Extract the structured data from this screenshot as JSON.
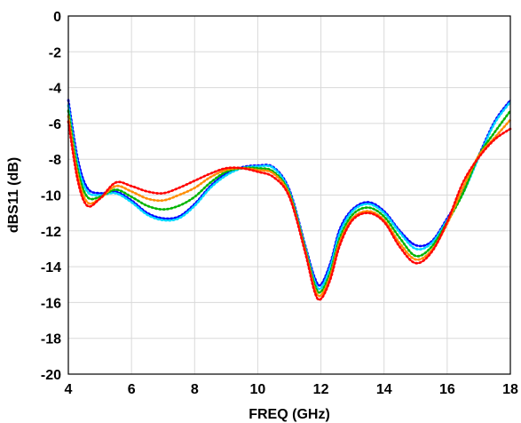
{
  "chart_data": {
    "type": "line",
    "title": "",
    "xlabel": "FREQ (GHz)",
    "ylabel": "dBS11 (dB)",
    "xlim": [
      4,
      18
    ],
    "ylim": [
      -20,
      0
    ],
    "xticks": [
      4,
      6,
      8,
      10,
      12,
      14,
      16,
      18
    ],
    "yticks": [
      0,
      -2,
      -4,
      -6,
      -8,
      -10,
      -12,
      -14,
      -16,
      -18,
      -20
    ],
    "grid": true,
    "legend": "none",
    "series": [
      {
        "color": "#0000ff",
        "x": [
          4.0,
          4.3,
          4.6,
          5.0,
          5.5,
          6.0,
          6.5,
          7.0,
          7.5,
          8.0,
          8.5,
          9.0,
          9.5,
          10.0,
          10.5,
          11.0,
          11.5,
          11.8,
          12.0,
          12.3,
          12.6,
          13.0,
          13.5,
          14.0,
          14.5,
          15.0,
          15.5,
          16.0,
          16.5,
          17.0,
          17.5,
          18.0
        ],
        "y": [
          -4.7,
          -8.0,
          -9.6,
          -9.9,
          -9.8,
          -10.3,
          -11.0,
          -11.3,
          -11.2,
          -10.5,
          -9.5,
          -8.8,
          -8.45,
          -8.35,
          -8.45,
          -9.7,
          -12.8,
          -14.6,
          -15.0,
          -13.8,
          -11.9,
          -10.8,
          -10.4,
          -10.9,
          -12.0,
          -12.8,
          -12.6,
          -11.3,
          -9.8,
          -7.8,
          -5.9,
          -4.7
        ]
      },
      {
        "color": "#00d8ff",
        "x": [
          4.0,
          4.3,
          4.6,
          5.0,
          5.5,
          6.0,
          6.5,
          7.0,
          7.5,
          8.0,
          8.5,
          9.0,
          9.5,
          10.0,
          10.5,
          11.0,
          11.5,
          11.8,
          12.0,
          12.3,
          12.6,
          13.0,
          13.5,
          14.0,
          14.5,
          15.0,
          15.5,
          16.0,
          16.5,
          17.0,
          17.5,
          18.0
        ],
        "y": [
          -5.0,
          -8.3,
          -9.8,
          -10.0,
          -9.9,
          -10.4,
          -11.1,
          -11.4,
          -11.3,
          -10.6,
          -9.6,
          -8.9,
          -8.5,
          -8.4,
          -8.5,
          -9.8,
          -12.9,
          -14.8,
          -15.2,
          -14.0,
          -12.1,
          -10.9,
          -10.5,
          -11.0,
          -12.1,
          -13.0,
          -12.7,
          -11.4,
          -9.9,
          -7.9,
          -6.0,
          -4.8
        ]
      },
      {
        "color": "#00b400",
        "x": [
          4.0,
          4.3,
          4.6,
          5.0,
          5.5,
          6.0,
          6.5,
          7.0,
          7.5,
          8.0,
          8.5,
          9.0,
          9.5,
          10.0,
          10.5,
          11.0,
          11.5,
          11.8,
          12.0,
          12.3,
          12.6,
          13.0,
          13.5,
          14.0,
          14.5,
          15.0,
          15.5,
          16.0,
          16.5,
          17.0,
          17.5,
          18.0
        ],
        "y": [
          -5.3,
          -8.6,
          -10.1,
          -10.1,
          -9.7,
          -10.1,
          -10.6,
          -10.8,
          -10.6,
          -10.1,
          -9.3,
          -8.7,
          -8.5,
          -8.5,
          -8.7,
          -9.9,
          -13.0,
          -15.0,
          -15.4,
          -14.3,
          -12.4,
          -11.1,
          -10.7,
          -11.2,
          -12.4,
          -13.4,
          -12.9,
          -11.5,
          -9.9,
          -7.8,
          -6.5,
          -5.3
        ]
      },
      {
        "color": "#ff8c00",
        "x": [
          4.0,
          4.3,
          4.6,
          5.0,
          5.5,
          6.0,
          6.5,
          7.0,
          7.5,
          8.0,
          8.5,
          9.0,
          9.5,
          10.0,
          10.5,
          11.0,
          11.5,
          11.8,
          12.0,
          12.3,
          12.6,
          13.0,
          13.5,
          14.0,
          14.5,
          15.0,
          15.5,
          16.0,
          16.5,
          17.0,
          17.5,
          18.0
        ],
        "y": [
          -5.6,
          -8.9,
          -10.4,
          -10.2,
          -9.5,
          -9.8,
          -10.2,
          -10.3,
          -10.0,
          -9.6,
          -9.0,
          -8.6,
          -8.5,
          -8.6,
          -8.8,
          -10.0,
          -13.1,
          -15.2,
          -15.6,
          -14.5,
          -12.6,
          -11.3,
          -10.9,
          -11.4,
          -12.7,
          -13.6,
          -13.1,
          -11.6,
          -9.6,
          -7.8,
          -6.8,
          -5.8
        ]
      },
      {
        "color": "#ff0000",
        "x": [
          4.0,
          4.3,
          4.6,
          5.0,
          5.5,
          6.0,
          6.5,
          7.0,
          7.5,
          8.0,
          8.5,
          9.0,
          9.5,
          10.0,
          10.5,
          11.0,
          11.5,
          11.8,
          12.0,
          12.3,
          12.6,
          13.0,
          13.5,
          14.0,
          14.5,
          15.0,
          15.5,
          16.0,
          16.5,
          17.0,
          17.5,
          18.0
        ],
        "y": [
          -5.9,
          -9.2,
          -10.6,
          -10.2,
          -9.3,
          -9.5,
          -9.8,
          -9.9,
          -9.6,
          -9.2,
          -8.8,
          -8.5,
          -8.5,
          -8.7,
          -9.0,
          -10.1,
          -13.2,
          -15.4,
          -15.8,
          -14.7,
          -12.8,
          -11.4,
          -11.0,
          -11.5,
          -12.9,
          -13.8,
          -13.2,
          -11.5,
          -9.3,
          -7.9,
          -6.9,
          -6.3
        ]
      }
    ]
  }
}
